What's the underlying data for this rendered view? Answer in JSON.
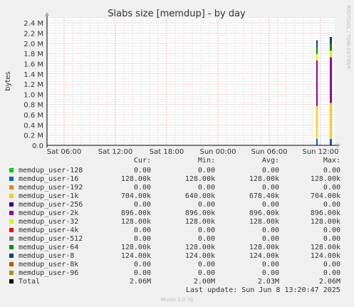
{
  "chart_data": {
    "type": "area",
    "title": "Slabs size [memdup] - by day",
    "ylabel": "bytes",
    "xlabel": "",
    "ylim": [
      0,
      2500000
    ],
    "y_ticks": [
      "0.0",
      "0.2 M",
      "0.4 M",
      "0.6 M",
      "0.8 M",
      "1.0 M",
      "1.2 M",
      "1.4 M",
      "1.6 M",
      "1.8 M",
      "2.0 M",
      "2.2 M",
      "2.4 M"
    ],
    "x_ticks": [
      "Sat 06:00",
      "Sat 12:00",
      "Sat 18:00",
      "Sun 00:00",
      "Sun 06:00",
      "Sun 12:00"
    ],
    "grid": true,
    "watermark": "RRDTOOL / TOBI OETIKER",
    "columns": [
      "Cur:",
      "Min:",
      "Avg:",
      "Max:"
    ],
    "series": [
      {
        "name": "memdup_user-128",
        "color": "#00cc00",
        "cur": "0.00",
        "min": "0.00",
        "avg": "0.00",
        "max": "0.00",
        "value": 0
      },
      {
        "name": "memdup_user-16",
        "color": "#0066b3",
        "cur": "128.00k",
        "min": "128.00k",
        "avg": "128.00k",
        "max": "128.00k",
        "value": 128000
      },
      {
        "name": "memdup_user-192",
        "color": "#ff8000",
        "cur": "0.00",
        "min": "0.00",
        "avg": "0.00",
        "max": "0.00",
        "value": 0
      },
      {
        "name": "memdup_user-1k",
        "color": "#ffcc00",
        "cur": "704.00k",
        "min": "640.00k",
        "avg": "678.40k",
        "max": "704.00k",
        "value": 704000
      },
      {
        "name": "memdup_user-256",
        "color": "#330099",
        "cur": "0.00",
        "min": "0.00",
        "avg": "0.00",
        "max": "0.00",
        "value": 0
      },
      {
        "name": "memdup_user-2k",
        "color": "#990099",
        "cur": "896.00k",
        "min": "896.00k",
        "avg": "896.00k",
        "max": "896.00k",
        "value": 896000
      },
      {
        "name": "memdup_user-32",
        "color": "#ccff00",
        "cur": "128.00k",
        "min": "128.00k",
        "avg": "128.00k",
        "max": "128.00k",
        "value": 128000
      },
      {
        "name": "memdup_user-4k",
        "color": "#ff0000",
        "cur": "0.00",
        "min": "0.00",
        "avg": "0.00",
        "max": "0.00",
        "value": 0
      },
      {
        "name": "memdup_user-512",
        "color": "#808080",
        "cur": "0.00",
        "min": "0.00",
        "avg": "0.00",
        "max": "0.00",
        "value": 0
      },
      {
        "name": "memdup_user-64",
        "color": "#008f00",
        "cur": "128.00k",
        "min": "128.00k",
        "avg": "128.00k",
        "max": "128.00k",
        "value": 128000
      },
      {
        "name": "memdup_user-8",
        "color": "#00487d",
        "cur": "124.00k",
        "min": "124.00k",
        "avg": "124.00k",
        "max": "124.00k",
        "value": 124000
      },
      {
        "name": "memdup_user-8k",
        "color": "#b35a00",
        "cur": "0.00",
        "min": "0.00",
        "avg": "0.00",
        "max": "0.00",
        "value": 0
      },
      {
        "name": "memdup_user-96",
        "color": "#b38f00",
        "cur": "0.00",
        "min": "0.00",
        "avg": "0.00",
        "max": "0.00",
        "value": 0
      },
      {
        "name": "Total",
        "color": "#000000",
        "cur": "2.06M",
        "min": "2.00M",
        "avg": "2.03M",
        "max": "2.06M",
        "value": 2060000
      }
    ],
    "last_update": "Last update: Sun Jun  8 13:20:47 2025",
    "footer": "Munin 2.0.76"
  }
}
